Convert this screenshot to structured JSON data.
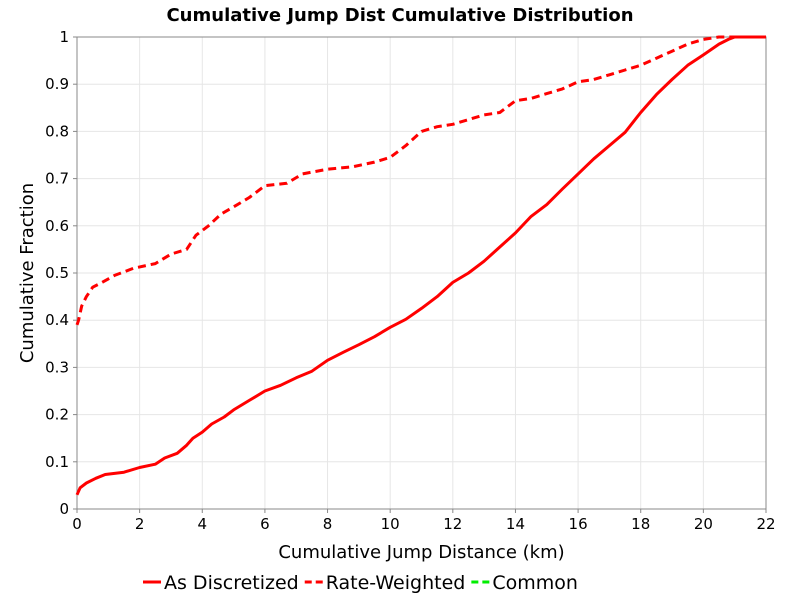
{
  "chart_data": {
    "type": "line",
    "title": "Cumulative Jump Dist Cumulative Distribution",
    "xlabel": "Cumulative Jump Distance (km)",
    "ylabel": "Cumulative Fraction",
    "xlim": [
      0,
      22
    ],
    "ylim": [
      0,
      1
    ],
    "xticks": [
      0,
      2,
      4,
      6,
      8,
      10,
      12,
      14,
      16,
      18,
      20,
      22
    ],
    "yticks": [
      0,
      0.1,
      0.2,
      0.3,
      0.4,
      0.5,
      0.6,
      0.7,
      0.8,
      0.9,
      1
    ],
    "xtick_labels": [
      "0",
      "2",
      "4",
      "6",
      "8",
      "10",
      "12",
      "14",
      "16",
      "18",
      "20",
      "22"
    ],
    "ytick_labels": [
      "0",
      "0.1",
      "0.2",
      "0.3",
      "0.4",
      "0.5",
      "0.6",
      "0.7",
      "0.8",
      "0.9",
      "1"
    ],
    "grid": true,
    "legend_position": "bottom",
    "series": [
      {
        "name": "As Discretized",
        "color": "#ff0000",
        "dash": "solid",
        "x": [
          0,
          0.1,
          0.3,
          0.6,
          0.9,
          1.5,
          2.0,
          2.5,
          2.8,
          3.2,
          3.5,
          3.7,
          4.0,
          4.3,
          4.7,
          5.0,
          5.5,
          6.0,
          6.5,
          7.0,
          7.5,
          8.0,
          8.5,
          9.0,
          9.5,
          10.0,
          10.5,
          11.0,
          11.5,
          12.0,
          12.5,
          13.0,
          13.5,
          14.0,
          14.5,
          15.0,
          15.5,
          16.0,
          16.5,
          17.0,
          17.5,
          18.0,
          18.5,
          19.0,
          19.5,
          20.0,
          20.5,
          20.8,
          21.0,
          22.0
        ],
        "y": [
          0.03,
          0.045,
          0.055,
          0.065,
          0.073,
          0.078,
          0.088,
          0.095,
          0.108,
          0.118,
          0.135,
          0.15,
          0.163,
          0.18,
          0.195,
          0.21,
          0.23,
          0.25,
          0.262,
          0.278,
          0.292,
          0.315,
          0.332,
          0.348,
          0.365,
          0.385,
          0.402,
          0.425,
          0.45,
          0.48,
          0.5,
          0.525,
          0.555,
          0.585,
          0.62,
          0.645,
          0.678,
          0.71,
          0.742,
          0.77,
          0.798,
          0.84,
          0.878,
          0.91,
          0.94,
          0.962,
          0.985,
          0.995,
          1.0,
          1.0
        ]
      },
      {
        "name": "Rate-Weighted",
        "color": "#ff0000",
        "dash": "dashed",
        "x": [
          0,
          0.05,
          0.15,
          0.3,
          0.5,
          0.8,
          1.2,
          1.8,
          2.5,
          3.0,
          3.5,
          3.8,
          4.2,
          4.6,
          5.0,
          5.5,
          6.0,
          6.7,
          7.2,
          8.0,
          8.8,
          9.5,
          10.0,
          10.5,
          11.0,
          11.5,
          12.0,
          12.5,
          13.0,
          13.5,
          14.0,
          14.5,
          15.0,
          15.5,
          16.0,
          16.5,
          17.0,
          17.5,
          18.0,
          18.5,
          19.0,
          19.5,
          20.0,
          20.5,
          21.0,
          22.0
        ],
        "y": [
          0.39,
          0.4,
          0.43,
          0.45,
          0.47,
          0.48,
          0.495,
          0.51,
          0.52,
          0.54,
          0.55,
          0.58,
          0.6,
          0.625,
          0.64,
          0.66,
          0.685,
          0.69,
          0.71,
          0.72,
          0.725,
          0.735,
          0.745,
          0.77,
          0.8,
          0.81,
          0.815,
          0.825,
          0.835,
          0.84,
          0.865,
          0.87,
          0.88,
          0.89,
          0.905,
          0.91,
          0.92,
          0.93,
          0.94,
          0.955,
          0.97,
          0.985,
          0.995,
          1.0,
          1.0,
          1.0
        ]
      }
    ],
    "legend": [
      {
        "label": "As Discretized",
        "color": "#ff0000",
        "dash": "solid"
      },
      {
        "label": "Rate-Weighted",
        "color": "#ff0000",
        "dash": "dashed"
      },
      {
        "label": "Common",
        "color": "#00ee00",
        "dash": "dashed"
      }
    ]
  }
}
